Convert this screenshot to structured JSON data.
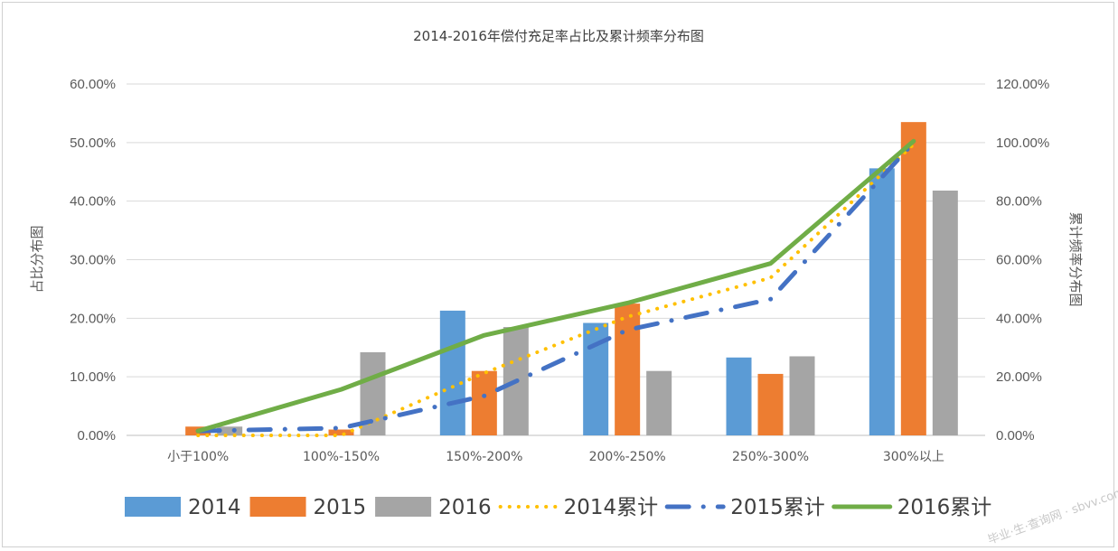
{
  "chart_data": {
    "type": "bar",
    "title": "2014-2016年偿付充足率占比及累计频率分布图",
    "categories": [
      "小于100%",
      "100%-150%",
      "150%-200%",
      "200%-250%",
      "250%-300%",
      "300%以上"
    ],
    "ylabel": "占比分布图",
    "y2label": "累计频率分布图",
    "ylim": [
      0,
      60
    ],
    "y2lim": [
      0,
      120
    ],
    "yticks": [
      "0.00%",
      "10.00%",
      "20.00%",
      "30.00%",
      "40.00%",
      "50.00%",
      "60.00%"
    ],
    "y2ticks": [
      "0.00%",
      "20.00%",
      "40.00%",
      "60.00%",
      "80.00%",
      "100.00%",
      "120.00%"
    ],
    "grid": true,
    "legend_position": "bottom",
    "series": [
      {
        "name": "2014",
        "type": "bar",
        "axis": "left",
        "color": "#5b9bd5",
        "values": [
          0.0,
          0.0,
          21.3,
          19.2,
          13.3,
          45.6
        ]
      },
      {
        "name": "2015",
        "type": "bar",
        "axis": "left",
        "color": "#ed7d31",
        "values": [
          1.5,
          1.0,
          11.0,
          22.5,
          10.5,
          53.5
        ]
      },
      {
        "name": "2016",
        "type": "bar",
        "axis": "left",
        "color": "#a5a5a5",
        "values": [
          1.5,
          14.2,
          18.5,
          11.0,
          13.5,
          41.8
        ]
      },
      {
        "name": "2014累计",
        "type": "line",
        "style": "dotted",
        "axis": "right",
        "color": "#ffc000",
        "values": [
          0.0,
          0.0,
          21.3,
          40.5,
          53.8,
          99.4
        ]
      },
      {
        "name": "2015累计",
        "type": "line",
        "style": "dash-dot",
        "axis": "right",
        "color": "#4472c4",
        "values": [
          1.5,
          2.5,
          13.5,
          36.0,
          46.5,
          100.0
        ]
      },
      {
        "name": "2016累计",
        "type": "line",
        "style": "solid",
        "axis": "right",
        "color": "#70ad47",
        "values": [
          1.5,
          15.7,
          34.2,
          45.2,
          58.7,
          100.5
        ]
      }
    ]
  },
  "watermark": "毕业·生·查询网 · sbvv.com"
}
